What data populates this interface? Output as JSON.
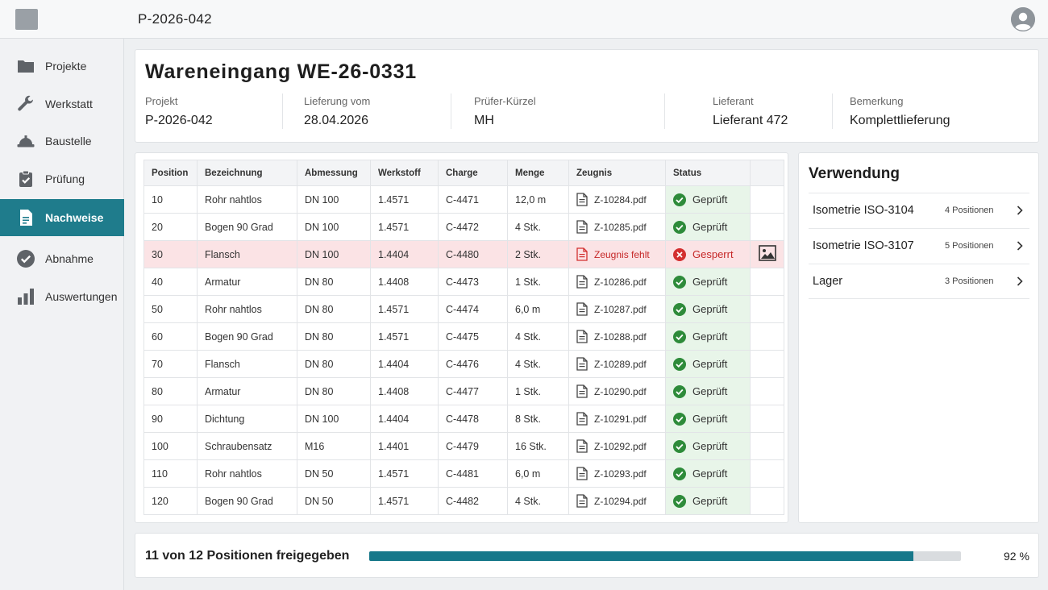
{
  "topbar": {
    "title": "P-2026-042"
  },
  "sidebar": {
    "items": [
      {
        "label": "Projekte",
        "icon": "folder-icon",
        "active": false
      },
      {
        "label": "Werkstatt",
        "icon": "wrench-icon",
        "active": false
      },
      {
        "label": "Baustelle",
        "icon": "hardhat-icon",
        "active": false
      },
      {
        "label": "Prüfung",
        "icon": "clipboard-check-icon",
        "active": false
      },
      {
        "label": "Nachweise",
        "icon": "document-icon",
        "active": true
      },
      {
        "label": "Abnahme",
        "icon": "check-circle-icon",
        "active": false
      },
      {
        "label": "Auswertungen",
        "icon": "bar-chart-icon",
        "active": false
      }
    ]
  },
  "header": {
    "title": "Wareneingang WE-26-0331",
    "fields": [
      {
        "label": "Projekt",
        "value": "P-2026-042"
      },
      {
        "label": "Lieferung vom",
        "value": "28.04.2026"
      },
      {
        "label": "Prüfer-Kürzel",
        "value": "MH"
      },
      {
        "label": "Lieferant",
        "value": "Lieferant 472"
      },
      {
        "label": "Bemerkung",
        "value": "Komplettlieferung"
      }
    ]
  },
  "table": {
    "columns": [
      "Position",
      "Bezeichnung",
      "Abmessung",
      "Werkstoff",
      "Charge",
      "Menge",
      "Zeugnis",
      "Status",
      ""
    ],
    "rows": [
      {
        "position": "10",
        "bezeichnung": "Rohr nahtlos",
        "abmessung": "DN 100",
        "werkstoff": "1.4571",
        "charge": "C-4471",
        "menge": "12,0 m",
        "zeugnis": "Z-10284.pdf",
        "status": "Geprüft",
        "blocked": false
      },
      {
        "position": "20",
        "bezeichnung": "Bogen 90 Grad",
        "abmessung": "DN 100",
        "werkstoff": "1.4571",
        "charge": "C-4472",
        "menge": "4 Stk.",
        "zeugnis": "Z-10285.pdf",
        "status": "Geprüft",
        "blocked": false
      },
      {
        "position": "30",
        "bezeichnung": "Flansch",
        "abmessung": "DN 100",
        "werkstoff": "1.4404",
        "charge": "C-4480",
        "menge": "2 Stk.",
        "zeugnis": "Zeugnis fehlt",
        "status": "Gesperrt",
        "blocked": true
      },
      {
        "position": "40",
        "bezeichnung": "Armatur",
        "abmessung": "DN 80",
        "werkstoff": "1.4408",
        "charge": "C-4473",
        "menge": "1 Stk.",
        "zeugnis": "Z-10286.pdf",
        "status": "Geprüft",
        "blocked": false
      },
      {
        "position": "50",
        "bezeichnung": "Rohr nahtlos",
        "abmessung": "DN 80",
        "werkstoff": "1.4571",
        "charge": "C-4474",
        "menge": "6,0 m",
        "zeugnis": "Z-10287.pdf",
        "status": "Geprüft",
        "blocked": false
      },
      {
        "position": "60",
        "bezeichnung": "Bogen 90 Grad",
        "abmessung": "DN 80",
        "werkstoff": "1.4571",
        "charge": "C-4475",
        "menge": "4 Stk.",
        "zeugnis": "Z-10288.pdf",
        "status": "Geprüft",
        "blocked": false
      },
      {
        "position": "70",
        "bezeichnung": "Flansch",
        "abmessung": "DN 80",
        "werkstoff": "1.4404",
        "charge": "C-4476",
        "menge": "4 Stk.",
        "zeugnis": "Z-10289.pdf",
        "status": "Geprüft",
        "blocked": false
      },
      {
        "position": "80",
        "bezeichnung": "Armatur",
        "abmessung": "DN 80",
        "werkstoff": "1.4408",
        "charge": "C-4477",
        "menge": "1 Stk.",
        "zeugnis": "Z-10290.pdf",
        "status": "Geprüft",
        "blocked": false
      },
      {
        "position": "90",
        "bezeichnung": "Dichtung",
        "abmessung": "DN 100",
        "werkstoff": "1.4404",
        "charge": "C-4478",
        "menge": "8 Stk.",
        "zeugnis": "Z-10291.pdf",
        "status": "Geprüft",
        "blocked": false
      },
      {
        "position": "100",
        "bezeichnung": "Schraubensatz",
        "abmessung": "M16",
        "werkstoff": "1.4401",
        "charge": "C-4479",
        "menge": "16 Stk.",
        "zeugnis": "Z-10292.pdf",
        "status": "Geprüft",
        "blocked": false
      },
      {
        "position": "110",
        "bezeichnung": "Rohr nahtlos",
        "abmessung": "DN 50",
        "werkstoff": "1.4571",
        "charge": "C-4481",
        "menge": "6,0 m",
        "zeugnis": "Z-10293.pdf",
        "status": "Geprüft",
        "blocked": false
      },
      {
        "position": "120",
        "bezeichnung": "Bogen 90 Grad",
        "abmessung": "DN 50",
        "werkstoff": "1.4571",
        "charge": "C-4482",
        "menge": "4 Stk.",
        "zeugnis": "Z-10294.pdf",
        "status": "Geprüft",
        "blocked": false
      }
    ]
  },
  "verwendung": {
    "title": "Verwendung",
    "items": [
      {
        "name": "Isometrie ISO-3104",
        "count": "4 Positionen"
      },
      {
        "name": "Isometrie ISO-3107",
        "count": "5 Positionen"
      },
      {
        "name": "Lager",
        "count": "3 Positionen"
      }
    ]
  },
  "footer": {
    "summary": "11 von 12 Positionen freigegeben",
    "percent_label": "92 %",
    "progress": 0.92
  },
  "colors": {
    "accent": "#1f7c8c",
    "ok": "#2e8b3a",
    "blocked": "#d32f2f",
    "blocked_row": "#fbe3e5",
    "ok_cell": "#e8f5e9"
  }
}
